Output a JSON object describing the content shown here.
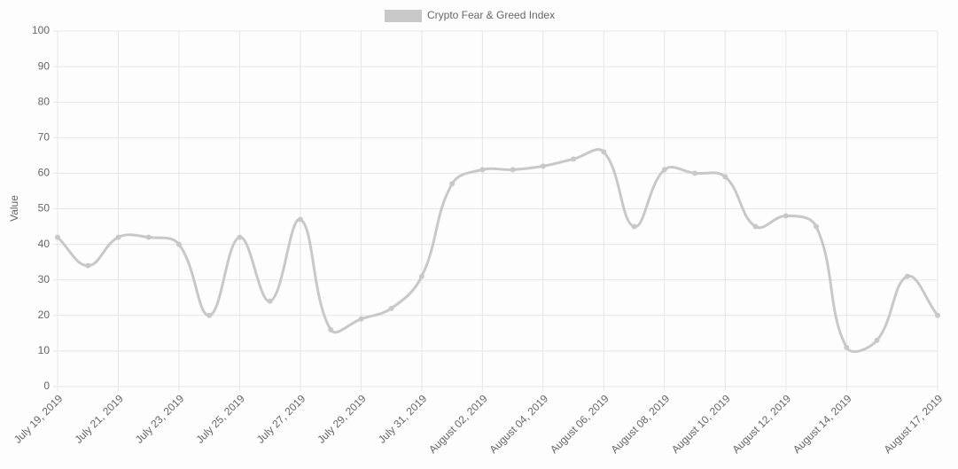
{
  "chart_data": {
    "type": "line",
    "legend": "top",
    "ylabel": "Value",
    "categories": [
      "July 19, 2019",
      null,
      "July 21, 2019",
      null,
      "July 23, 2019",
      null,
      "July 25, 2019",
      null,
      "July 27, 2019",
      null,
      "July 29, 2019",
      null,
      "July 31, 2019",
      null,
      "August 02, 2019",
      null,
      "August 04, 2019",
      null,
      "August 06, 2019",
      null,
      "August 08, 2019",
      null,
      "August 10, 2019",
      null,
      "August 12, 2019",
      null,
      "August 14, 2019",
      null,
      null,
      "August 17, 2019"
    ],
    "series": [
      {
        "name": "Crypto Fear & Greed Index",
        "color": "#c8c8c8",
        "values": [
          42,
          34,
          42,
          42,
          40,
          20,
          42,
          24,
          47,
          16,
          19,
          22,
          31,
          57,
          61,
          61,
          62,
          64,
          66,
          45,
          61,
          60,
          59,
          45,
          48,
          45,
          11,
          13,
          31,
          20
        ]
      }
    ],
    "ylim": [
      0,
      100
    ],
    "yticks": [
      0,
      10,
      20,
      30,
      40,
      50,
      60,
      70,
      80,
      90,
      100
    ],
    "grid": true
  }
}
